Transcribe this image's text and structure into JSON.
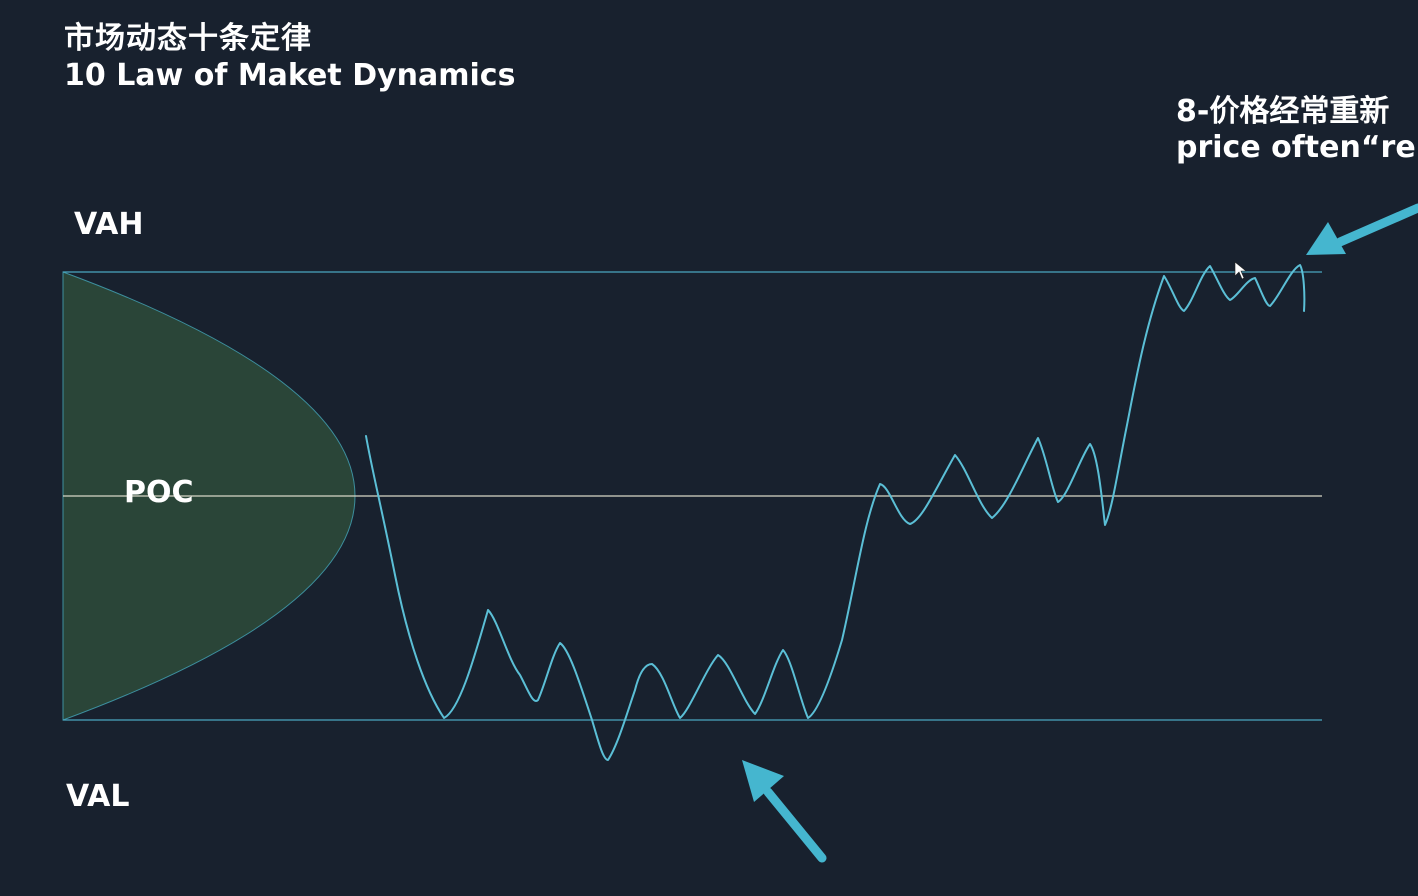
{
  "header": {
    "title_cn": "市场动态十条定律",
    "title_en": "10 Law of Maket Dynamics"
  },
  "levels": {
    "vah": "VAH",
    "poc": "POC",
    "val": "VAL"
  },
  "callout": {
    "law_cn": "8-价格经常重新",
    "law_en": "price often“re"
  },
  "colors": {
    "background": "#18212e",
    "level_line": "#4aa6c0",
    "poc_line": "#d8d8c6",
    "profile_fill": "#2a4538",
    "price_line": "#5bbfd6",
    "arrow": "#45b6cf",
    "text": "#ffffff"
  },
  "icons": {
    "arrow_up_left": "arrow-up-left-icon",
    "arrow_down_left": "arrow-down-left-icon",
    "cursor": "mouse-cursor-icon"
  }
}
